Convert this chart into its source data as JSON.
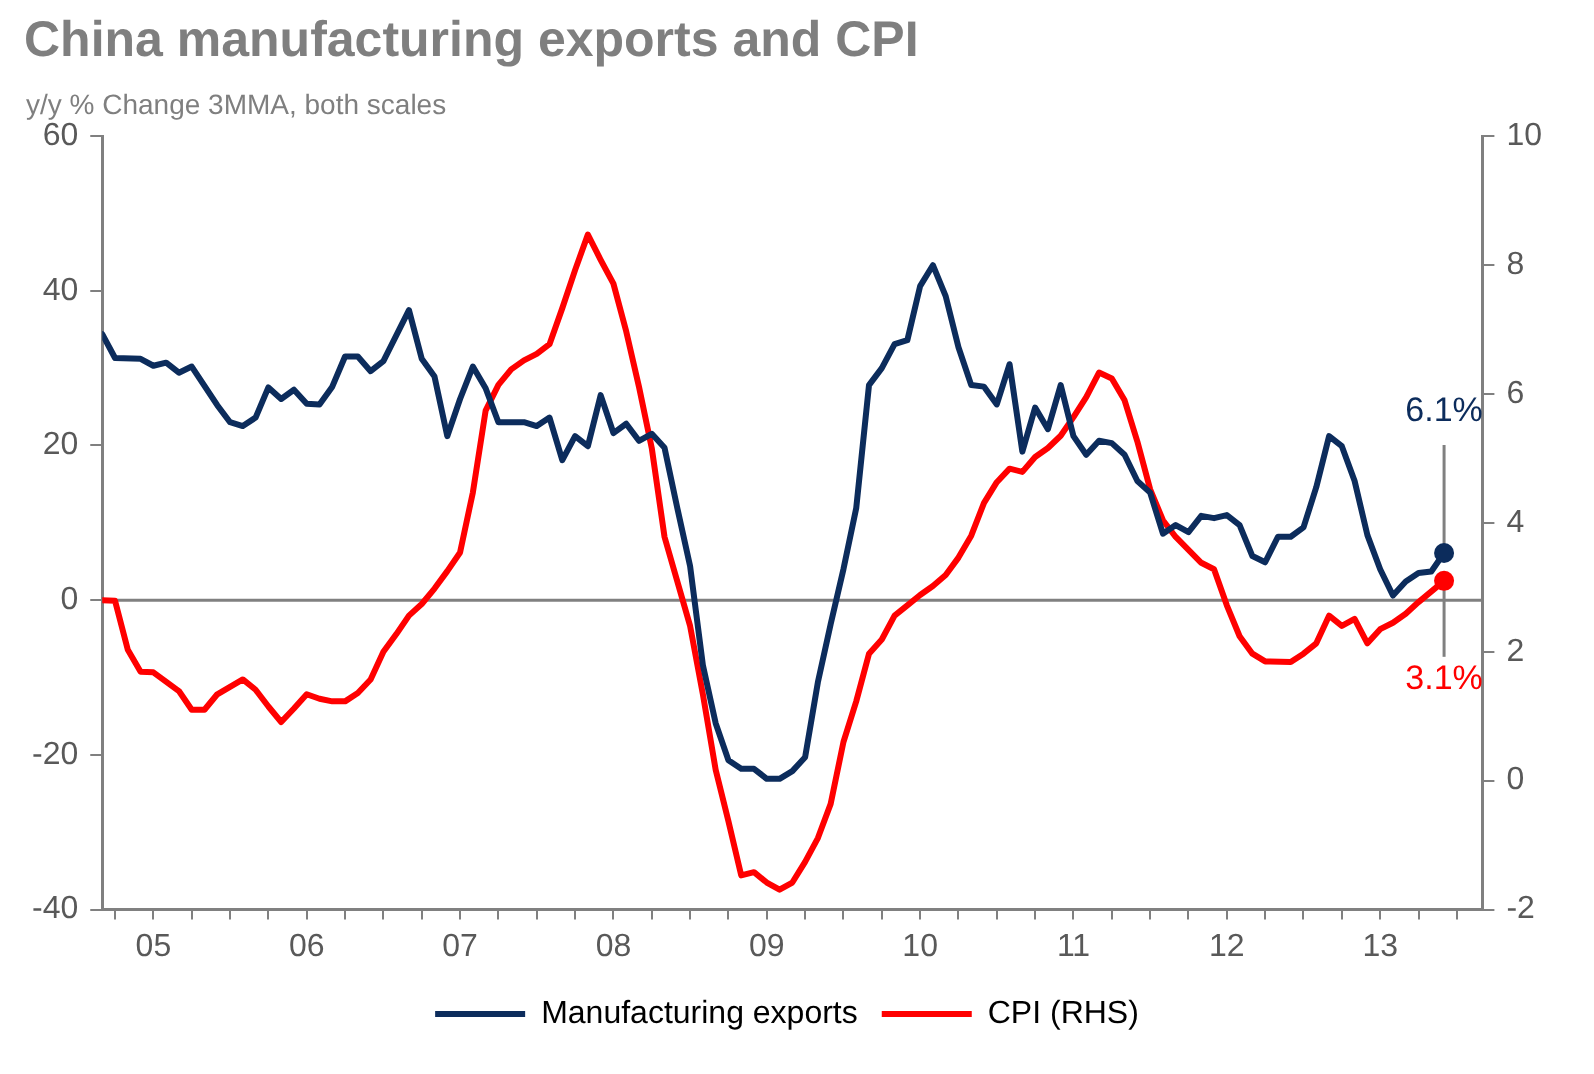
{
  "chart_data": {
    "type": "line",
    "title": "China manufacturing exports and CPI",
    "subtitle": "y/y % Change 3MMA, both scales",
    "xlim": [
      "2005-03",
      "2014-03"
    ],
    "xticks": [
      {
        "value": "2005-04",
        "label": null
      },
      {
        "value": "2005-07",
        "label": "05"
      },
      {
        "value": "2005-10",
        "label": null
      },
      {
        "value": "2006-01",
        "label": null
      },
      {
        "value": "2006-04",
        "label": null
      },
      {
        "value": "2006-07",
        "label": "06"
      },
      {
        "value": "2006-10",
        "label": null
      },
      {
        "value": "2007-01",
        "label": null
      },
      {
        "value": "2007-04",
        "label": null
      },
      {
        "value": "2007-07",
        "label": "07"
      },
      {
        "value": "2007-10",
        "label": null
      },
      {
        "value": "2008-01",
        "label": null
      },
      {
        "value": "2008-04",
        "label": null
      },
      {
        "value": "2008-07",
        "label": "08"
      },
      {
        "value": "2008-10",
        "label": null
      },
      {
        "value": "2009-01",
        "label": null
      },
      {
        "value": "2009-04",
        "label": null
      },
      {
        "value": "2009-07",
        "label": "09"
      },
      {
        "value": "2009-10",
        "label": null
      },
      {
        "value": "2010-01",
        "label": null
      },
      {
        "value": "2010-04",
        "label": null
      },
      {
        "value": "2010-07",
        "label": "10"
      },
      {
        "value": "2010-10",
        "label": null
      },
      {
        "value": "2011-01",
        "label": null
      },
      {
        "value": "2011-04",
        "label": null
      },
      {
        "value": "2011-07",
        "label": "11"
      },
      {
        "value": "2011-10",
        "label": null
      },
      {
        "value": "2012-01",
        "label": null
      },
      {
        "value": "2012-04",
        "label": null
      },
      {
        "value": "2012-07",
        "label": "12"
      },
      {
        "value": "2012-10",
        "label": null
      },
      {
        "value": "2013-01",
        "label": null
      },
      {
        "value": "2013-04",
        "label": null
      },
      {
        "value": "2013-07",
        "label": "13"
      },
      {
        "value": "2013-10",
        "label": null
      },
      {
        "value": "2014-01",
        "label": null
      }
    ],
    "ylim": [
      -40,
      60
    ],
    "yticks": [
      -40,
      -20,
      0,
      20,
      40,
      60
    ],
    "y2lim": [
      -2,
      10
    ],
    "y2ticks": [
      -2,
      0,
      2,
      4,
      6,
      8,
      10
    ],
    "grid": false,
    "legend": "bottom",
    "ref_lines": [
      {
        "axis": "y",
        "value": 0,
        "color": "#808080"
      }
    ],
    "series": [
      {
        "name": "Manufacturing exports",
        "color": "#0c2c5c",
        "x": [
          "2005-03",
          "2005-04",
          "2005-06",
          "2005-07",
          "2005-08",
          "2005-09",
          "2005-10",
          "2005-12",
          "2006-01",
          "2006-02",
          "2006-03",
          "2006-04",
          "2006-05",
          "2006-06",
          "2006-07",
          "2006-08",
          "2006-09",
          "2006-10",
          "2006-11",
          "2006-12",
          "2007-01",
          "2007-03",
          "2007-04",
          "2007-05",
          "2007-06",
          "2007-07",
          "2007-08",
          "2007-09",
          "2007-10",
          "2007-12",
          "2008-01",
          "2008-02",
          "2008-03",
          "2008-04",
          "2008-05",
          "2008-06",
          "2008-07",
          "2008-08",
          "2008-09",
          "2008-10",
          "2008-11",
          "2008-12",
          "2009-01",
          "2009-02",
          "2009-03",
          "2009-04",
          "2009-05",
          "2009-06",
          "2009-07",
          "2009-08",
          "2009-09",
          "2009-10",
          "2009-11",
          "2009-12",
          "2010-01",
          "2010-02",
          "2010-03",
          "2010-04",
          "2010-05",
          "2010-06",
          "2010-07",
          "2010-08",
          "2010-09",
          "2010-10",
          "2010-11",
          "2010-12",
          "2011-01",
          "2011-02",
          "2011-03",
          "2011-04",
          "2011-05",
          "2011-06",
          "2011-07",
          "2011-08",
          "2011-09",
          "2011-10",
          "2011-11",
          "2011-12",
          "2012-01",
          "2012-02",
          "2012-03",
          "2012-04",
          "2012-05",
          "2012-06",
          "2012-07",
          "2012-08",
          "2012-09",
          "2012-10",
          "2012-11",
          "2012-12",
          "2013-01",
          "2013-02",
          "2013-03",
          "2013-04",
          "2013-05",
          "2013-06",
          "2013-07",
          "2013-08",
          "2013-09",
          "2013-10",
          "2013-11",
          "2013-12"
        ],
        "values": [
          34.4,
          31.3,
          31.2,
          30.3,
          30.7,
          29.4,
          30.2,
          25.2,
          23.0,
          22.5,
          23.6,
          27.5,
          26.0,
          27.2,
          25.4,
          25.3,
          27.6,
          31.5,
          31.5,
          29.6,
          30.9,
          37.5,
          31.2,
          28.9,
          21.2,
          26.0,
          30.2,
          27.4,
          23.0,
          23.0,
          22.5,
          23.6,
          18.1,
          21.2,
          19.9,
          26.5,
          21.6,
          22.8,
          20.6,
          21.5,
          19.7,
          11.9,
          4.4,
          -8.4,
          -15.9,
          -20.7,
          -21.8,
          -21.8,
          -23.1,
          -23.1,
          -22.1,
          -20.3,
          -10.6,
          -3.1,
          4.0,
          11.9,
          27.8,
          30.0,
          33.1,
          33.6,
          40.6,
          43.3,
          39.3,
          32.7,
          27.8,
          27.6,
          25.3,
          30.5,
          19.2,
          24.9,
          22.1,
          27.8,
          21.2,
          18.8,
          20.6,
          20.3,
          18.8,
          15.4,
          13.9,
          8.6,
          9.7,
          8.8,
          10.9,
          10.6,
          11.0,
          9.7,
          5.7,
          4.9,
          8.2,
          8.2,
          9.4,
          14.6,
          21.2,
          19.9,
          15.4,
          8.4,
          4.0,
          0.6,
          2.4,
          3.5,
          3.7,
          6.1
        ],
        "value_labels": [
          null,
          null,
          null,
          null,
          null,
          null,
          null,
          null,
          null,
          null,
          null,
          null,
          null,
          null,
          null,
          null,
          null,
          null,
          null,
          null,
          null,
          null,
          null,
          null,
          null,
          null,
          null,
          null,
          null,
          null,
          null,
          null,
          null,
          null,
          null,
          null,
          null,
          null,
          null,
          null,
          null,
          null,
          null,
          null,
          null,
          null,
          null,
          null,
          null,
          null,
          null,
          null,
          null,
          null,
          null,
          null,
          null,
          null,
          null,
          null,
          null,
          null,
          null,
          null,
          null,
          null,
          null,
          null,
          null,
          null,
          null,
          null,
          null,
          null,
          null,
          null,
          null,
          null,
          null,
          null,
          null,
          null,
          null,
          null,
          null,
          null,
          null,
          null,
          null,
          null,
          null,
          null,
          null,
          null,
          null,
          null,
          null,
          null,
          null,
          null,
          null,
          "6.1%"
        ]
      },
      {
        "name": "CPI (RHS)",
        "color": "#ff0000",
        "axis": "y2",
        "x": [
          "2005-03",
          "2005-04",
          "2005-05",
          "2005-06",
          "2005-07",
          "2005-09",
          "2005-10",
          "2005-11",
          "2005-12",
          "2006-02",
          "2006-03",
          "2006-04",
          "2006-05",
          "2006-06",
          "2006-07",
          "2006-08",
          "2006-09",
          "2006-10",
          "2006-11",
          "2006-12",
          "2007-01",
          "2007-02",
          "2007-03",
          "2007-04",
          "2007-05",
          "2007-06",
          "2007-07",
          "2007-08",
          "2007-09",
          "2007-10",
          "2007-11",
          "2007-12",
          "2008-01",
          "2008-02",
          "2008-03",
          "2008-04",
          "2008-05",
          "2008-06",
          "2008-07",
          "2008-08",
          "2008-09",
          "2008-10",
          "2008-11",
          "2009-01",
          "2009-02",
          "2009-03",
          "2009-04",
          "2009-05",
          "2009-06",
          "2009-07",
          "2009-08",
          "2009-09",
          "2009-10",
          "2009-11",
          "2009-12",
          "2010-01",
          "2010-02",
          "2010-03",
          "2010-04",
          "2010-05",
          "2010-06",
          "2010-07",
          "2010-08",
          "2010-09",
          "2010-10",
          "2010-11",
          "2010-12",
          "2011-01",
          "2011-02",
          "2011-03",
          "2011-04",
          "2011-05",
          "2011-06",
          "2011-07",
          "2011-08",
          "2011-09",
          "2011-10",
          "2011-11",
          "2011-12",
          "2012-01",
          "2012-02",
          "2012-03",
          "2012-05",
          "2012-06",
          "2012-07",
          "2012-08",
          "2012-09",
          "2012-10",
          "2012-12",
          "2013-01",
          "2013-02",
          "2013-03",
          "2013-04",
          "2013-05",
          "2013-06",
          "2013-07",
          "2013-08",
          "2013-09",
          "2013-10",
          "2013-12"
        ],
        "values": [
          2.8,
          2.79,
          2.03,
          1.69,
          1.68,
          1.39,
          1.1,
          1.1,
          1.34,
          1.57,
          1.41,
          1.15,
          0.91,
          1.12,
          1.34,
          1.27,
          1.23,
          1.23,
          1.36,
          1.57,
          2.0,
          2.27,
          2.56,
          2.74,
          2.98,
          3.25,
          3.54,
          4.47,
          5.74,
          6.14,
          6.38,
          6.52,
          6.62,
          6.77,
          7.33,
          7.92,
          8.47,
          8.08,
          7.71,
          6.97,
          6.11,
          5.16,
          3.78,
          2.4,
          1.34,
          0.17,
          -0.63,
          -1.47,
          -1.42,
          -1.58,
          -1.69,
          -1.58,
          -1.26,
          -0.89,
          -0.36,
          0.6,
          1.23,
          1.97,
          2.19,
          2.56,
          2.72,
          2.88,
          3.02,
          3.19,
          3.46,
          3.8,
          4.31,
          4.63,
          4.84,
          4.79,
          5.02,
          5.16,
          5.35,
          5.64,
          5.95,
          6.33,
          6.24,
          5.9,
          5.26,
          4.52,
          4.04,
          3.78,
          3.38,
          3.28,
          2.72,
          2.24,
          1.97,
          1.85,
          1.84,
          1.97,
          2.13,
          2.56,
          2.4,
          2.51,
          2.13,
          2.35,
          2.45,
          2.59,
          2.77,
          3.1
        ],
        "value_labels": [
          null,
          null,
          null,
          null,
          null,
          null,
          null,
          null,
          null,
          null,
          null,
          null,
          null,
          null,
          null,
          null,
          null,
          null,
          null,
          null,
          null,
          null,
          null,
          null,
          null,
          null,
          null,
          null,
          null,
          null,
          null,
          null,
          null,
          null,
          null,
          null,
          null,
          null,
          null,
          null,
          null,
          null,
          null,
          null,
          null,
          null,
          null,
          null,
          null,
          null,
          null,
          null,
          null,
          null,
          null,
          null,
          null,
          null,
          null,
          null,
          null,
          null,
          null,
          null,
          null,
          null,
          null,
          null,
          null,
          null,
          null,
          null,
          null,
          null,
          null,
          null,
          null,
          null,
          null,
          null,
          null,
          null,
          null,
          null,
          null,
          null,
          null,
          null,
          null,
          null,
          null,
          null,
          null,
          null,
          null,
          null,
          null,
          null,
          null,
          "3.1%"
        ]
      }
    ]
  }
}
